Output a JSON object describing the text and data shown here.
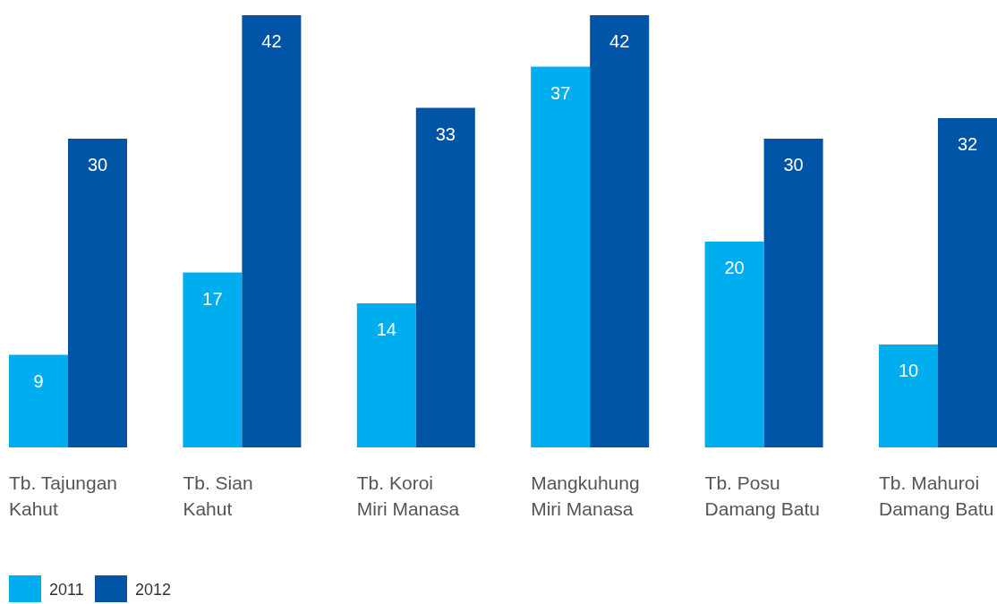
{
  "chart_data": {
    "type": "bar",
    "categories": [
      "Tb. Tajungan\nKahut",
      "Tb. Sian\nKahut",
      "Tb. Koroi\nMiri Manasa",
      "Mangkuhung\nMiri Manasa",
      "Tb. Posu\nDamang Batu",
      "Tb. Mahuroi\nDamang Batu"
    ],
    "series": [
      {
        "name": "2011",
        "color": "#00aeef",
        "values": [
          9,
          17,
          14,
          37,
          20,
          10
        ]
      },
      {
        "name": "2012",
        "color": "#0054a6",
        "values": [
          30,
          42,
          33,
          42,
          30,
          32
        ]
      }
    ],
    "data_labels": true,
    "legend": "bottom left"
  }
}
